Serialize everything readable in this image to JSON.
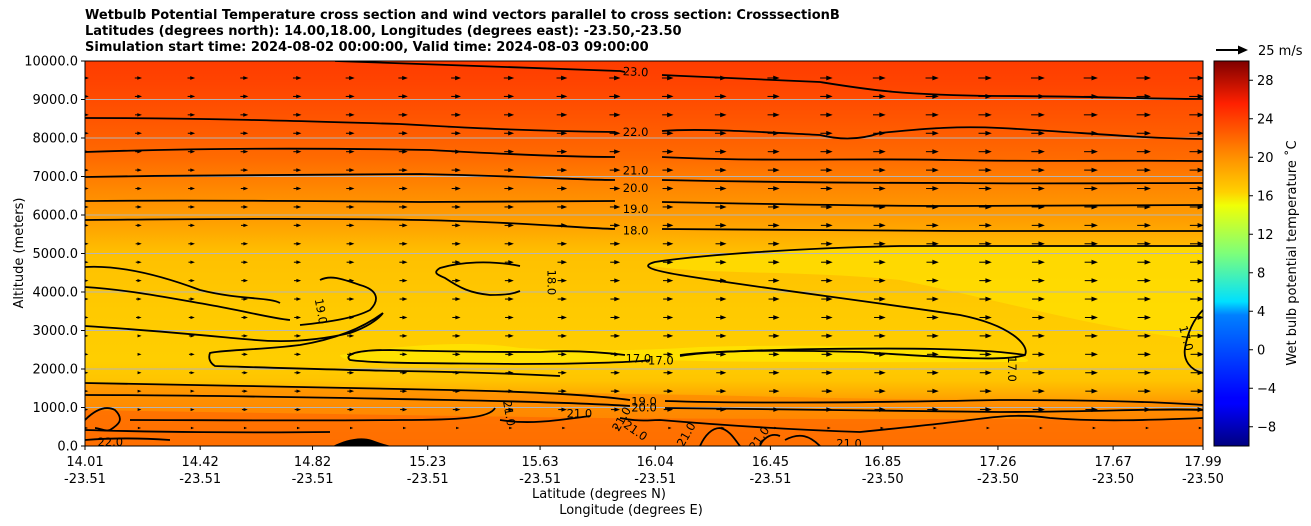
{
  "chart_data": {
    "type": "contourf",
    "title_lines": [
      "Wetbulb Potential Temperature cross section and wind vectors parallel to cross section: CrosssectionB",
      "Latitudes (degrees north): 14.00,18.00, Longitudes (degrees east): -23.50,-23.50",
      "Simulation start time: 2024-08-02 00:00:00, Valid time: 2024-08-03 09:00:00"
    ],
    "xlabel_lines": [
      "Latitude (degrees N)",
      "Longitude (degrees E)"
    ],
    "ylabel": "Altitude (meters)",
    "ylim": [
      0,
      10000
    ],
    "y_ticks": [
      "0.0",
      "1000.0",
      "2000.0",
      "3000.0",
      "4000.0",
      "5000.0",
      "6000.0",
      "7000.0",
      "8000.0",
      "9000.0",
      "10000.0"
    ],
    "y_tick_values": [
      0,
      1000,
      2000,
      3000,
      4000,
      5000,
      6000,
      7000,
      8000,
      9000,
      10000
    ],
    "x_ticks": [
      {
        "lat": "14.01",
        "lon": "-23.51"
      },
      {
        "lat": "14.42",
        "lon": "-23.51"
      },
      {
        "lat": "14.82",
        "lon": "-23.51"
      },
      {
        "lat": "15.23",
        "lon": "-23.51"
      },
      {
        "lat": "15.63",
        "lon": "-23.51"
      },
      {
        "lat": "16.04",
        "lon": "-23.51"
      },
      {
        "lat": "16.45",
        "lon": "-23.51"
      },
      {
        "lat": "16.85",
        "lon": "-23.50"
      },
      {
        "lat": "17.26",
        "lon": "-23.50"
      },
      {
        "lat": "17.67",
        "lon": "-23.50"
      },
      {
        "lat": "17.99",
        "lon": "-23.50"
      }
    ],
    "x_tick_values": [
      14.01,
      14.42,
      14.82,
      15.23,
      15.63,
      16.04,
      16.45,
      16.85,
      17.26,
      17.67,
      17.99
    ],
    "xlim": [
      14.01,
      17.99
    ],
    "grid": "horizontal",
    "colorbar": {
      "label": "Wet bulb potential temperature ˚C",
      "min": -10,
      "max": 30,
      "ticks": [
        "28",
        "24",
        "20",
        "16",
        "12",
        "8",
        "4",
        "0",
        "−4",
        "−8"
      ],
      "tick_values": [
        28,
        24,
        20,
        16,
        12,
        8,
        4,
        0,
        -4,
        -8
      ],
      "colormap": "jet"
    },
    "quiver_key": "25 m/s",
    "contour_labels": [
      {
        "text": "23.0",
        "lat": 15.97,
        "alt": 9720,
        "angle": 3
      },
      {
        "text": "22.0",
        "lat": 15.97,
        "alt": 8150,
        "angle": 0
      },
      {
        "text": "21.0",
        "lat": 15.97,
        "alt": 7150,
        "angle": 0
      },
      {
        "text": "20.0",
        "lat": 15.97,
        "alt": 6700,
        "angle": 0
      },
      {
        "text": "19.0",
        "lat": 15.97,
        "alt": 6150,
        "angle": 0
      },
      {
        "text": "18.0",
        "lat": 15.97,
        "alt": 5600,
        "angle": 0
      },
      {
        "text": "18.0",
        "lat": 15.67,
        "alt": 4250,
        "angle": 90
      },
      {
        "text": "19.0",
        "lat": 14.85,
        "alt": 3500,
        "angle": 80
      },
      {
        "text": "17.0",
        "lat": 15.98,
        "alt": 2270,
        "angle": 0
      },
      {
        "text": "17.0",
        "lat": 16.06,
        "alt": 2220,
        "angle": 0
      },
      {
        "text": "17.0",
        "lat": 17.31,
        "alt": 2000,
        "angle": 90
      },
      {
        "text": "17.0",
        "lat": 17.93,
        "alt": 2800,
        "angle": 75
      },
      {
        "text": "19.0",
        "lat": 16.0,
        "alt": 1150,
        "angle": 0
      },
      {
        "text": "20.0",
        "lat": 16.0,
        "alt": 1000,
        "angle": 0
      },
      {
        "text": "21.0",
        "lat": 15.77,
        "alt": 840,
        "angle": 0
      },
      {
        "text": "21.0",
        "lat": 15.52,
        "alt": 850,
        "angle": 80
      },
      {
        "text": "21.0",
        "lat": 15.92,
        "alt": 700,
        "angle": -60
      },
      {
        "text": "21.0",
        "lat": 15.97,
        "alt": 400,
        "angle": 35
      },
      {
        "text": "21.0",
        "lat": 16.15,
        "alt": 300,
        "angle": -60
      },
      {
        "text": "21.0",
        "lat": 16.41,
        "alt": 200,
        "angle": -55
      },
      {
        "text": "21.0",
        "lat": 16.73,
        "alt": 60,
        "angle": 0
      },
      {
        "text": "22.0",
        "lat": 14.1,
        "alt": 100,
        "angle": 0
      }
    ]
  }
}
